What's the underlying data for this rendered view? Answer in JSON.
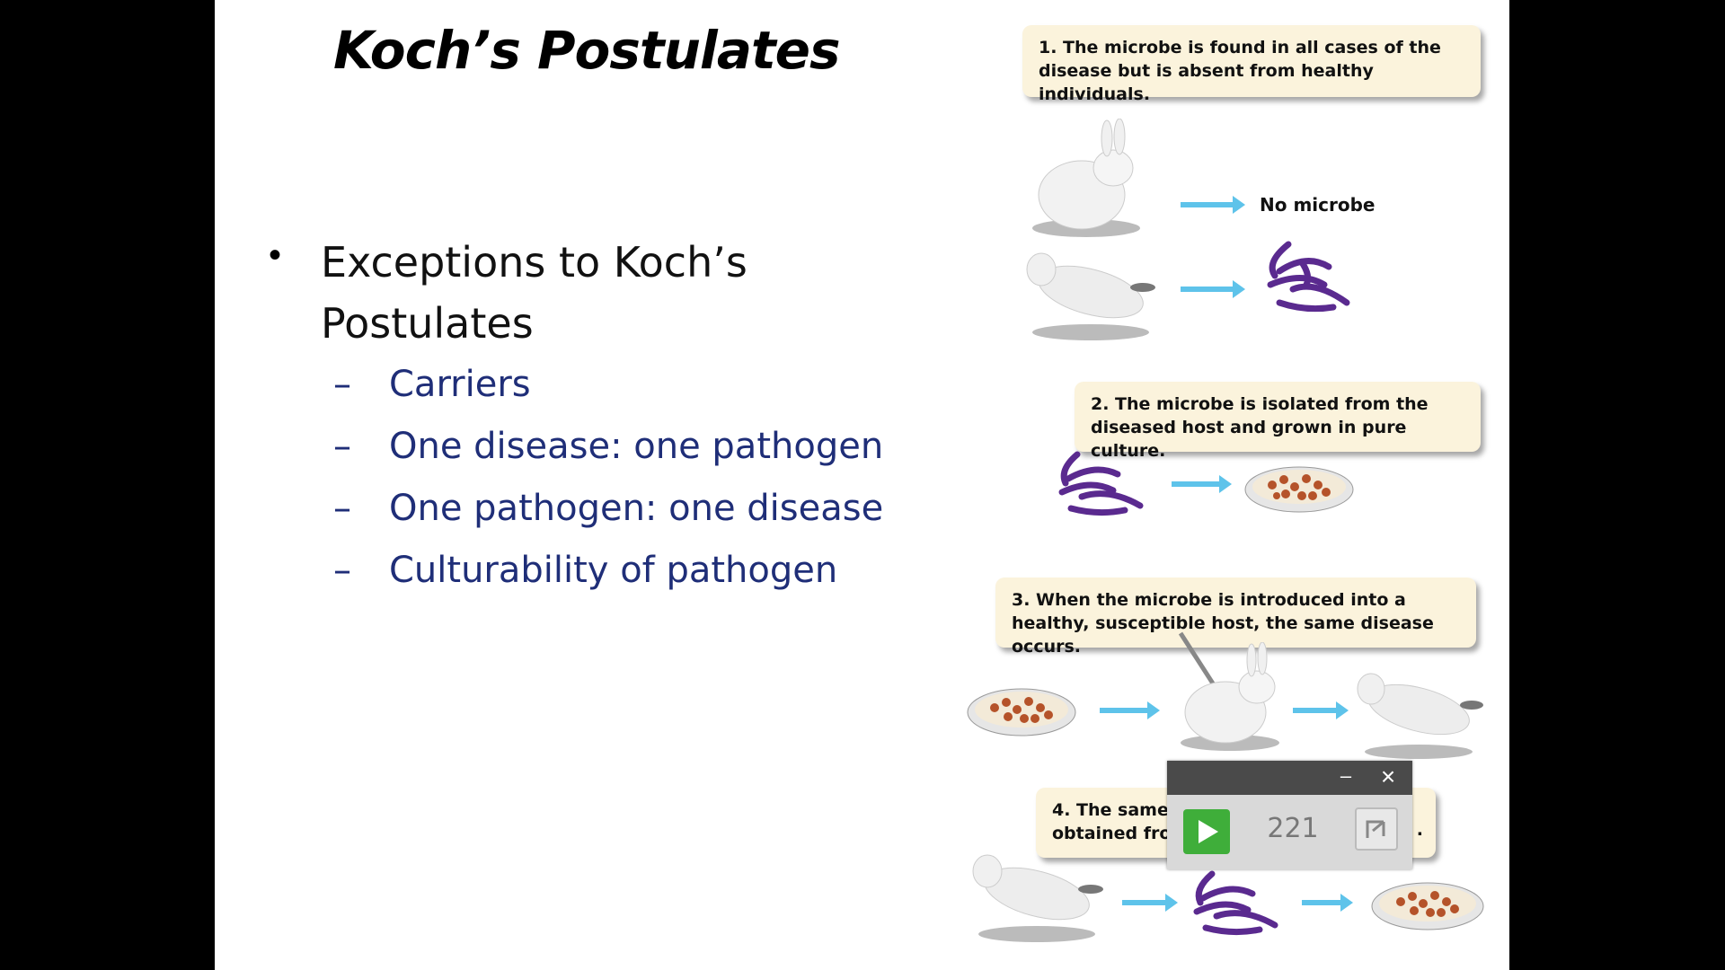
{
  "slide": {
    "title": "Koch’s Postulates",
    "bullet": "Exceptions to Koch’s Postulates",
    "sub_items": [
      "Carriers",
      "One disease: one pathogen",
      "One pathogen: one disease",
      "Culturability of pathogen"
    ],
    "dash": "–"
  },
  "figure": {
    "step1": "1. The microbe is found in all cases of the disease but is absent from healthy individuals.",
    "no_microbe": "No microbe",
    "step2": "2. The microbe is isolated from the diseased host and grown in pure culture.",
    "step3": "3. When the microbe is introduced into a healthy, susceptible host, the same disease occurs.",
    "step4_partial_line1": "4. The same",
    "step4_partial_line2": "obtained fro",
    "step4_tail": "."
  },
  "player": {
    "count": "221",
    "minimize_icon": "minimize-icon",
    "close_icon": "close-icon",
    "play_icon": "play-icon",
    "expand_icon": "expand-icon",
    "accent": "#3fae3a"
  }
}
